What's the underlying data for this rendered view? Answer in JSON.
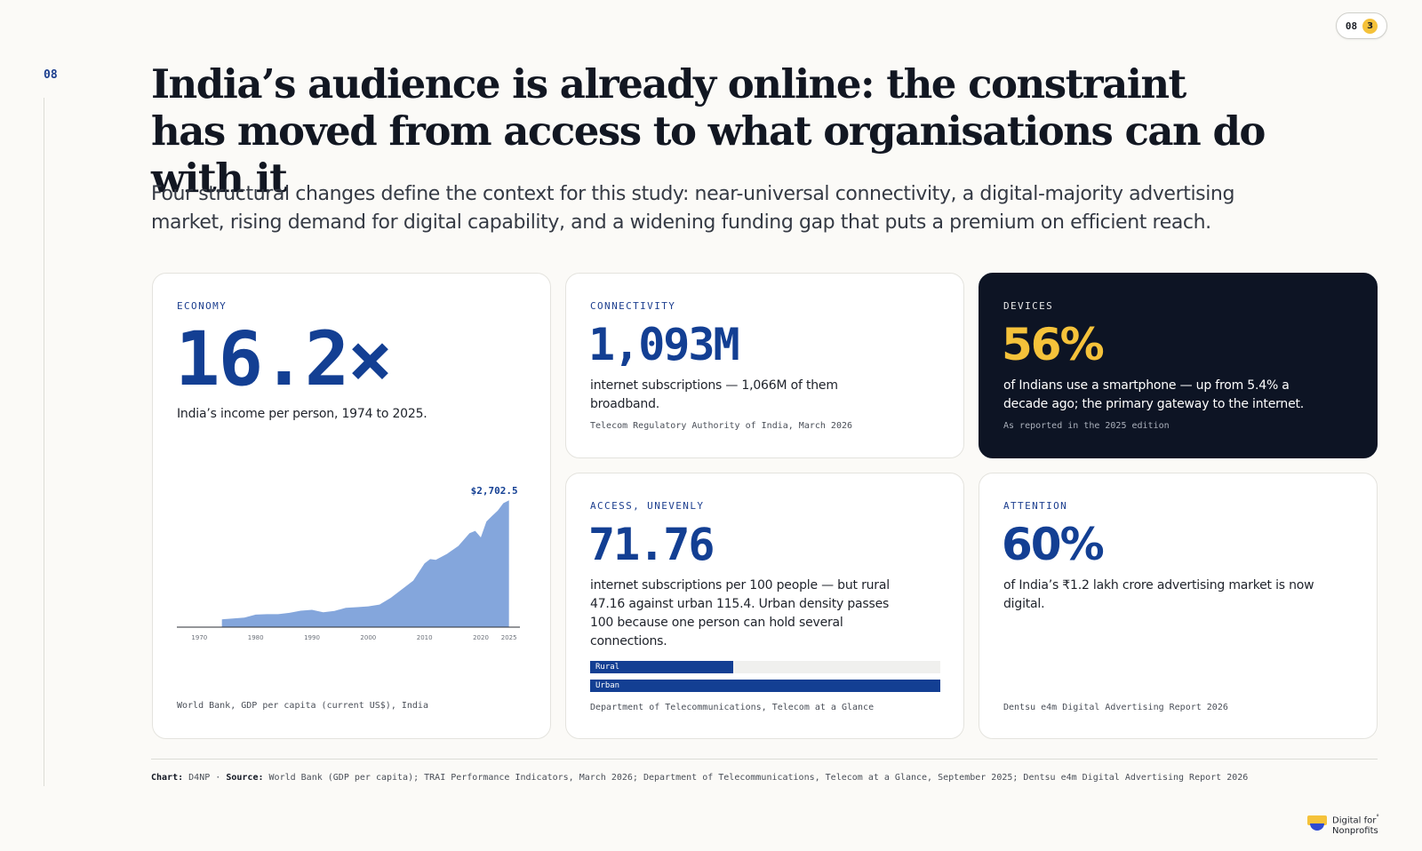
{
  "page": {
    "number": "08"
  },
  "badge": {
    "page": "08",
    "count": "3"
  },
  "title": "India’s audience is already online: the constraint has moved from access to what organisations can do with it",
  "subtitle": "Four structural changes define the context for this study: near-universal connectivity, a digital-majority advertising market, rising demand for digital capability, and a widening funding gap that puts a premium on efficient reach.",
  "cards": {
    "economy": {
      "label": "ECONOMY",
      "value": "16.2×",
      "description": "India’s income per person, 1974 to 2025.",
      "source": "World Bank, GDP per capita (current US$), India"
    },
    "connectivity": {
      "label": "CONNECTIVITY",
      "value": "1,093M",
      "description": "internet subscriptions — 1,066M of them broadband.",
      "source": "Telecom Regulatory Authority of India, March 2026"
    },
    "devices": {
      "label": "DEVICES",
      "value": "56%",
      "description": "of Indians use a smartphone — up from 5.4% a decade ago; the primary gateway to the internet.",
      "source": "As reported in the 2025 edition"
    },
    "access": {
      "label": "ACCESS, UNEVENLY",
      "value": "71.76",
      "description": "internet subscriptions per 100 people — but rural 47.16 against urban 115.4. Urban density passes 100 because one person can hold several connections.",
      "source": "Department of Telecommunications, Telecom at a Glance",
      "bars": [
        {
          "label": "Rural",
          "value": 47.16
        },
        {
          "label": "Urban",
          "value": 115.4
        }
      ]
    },
    "attention": {
      "label": "ATTENTION",
      "value": "60%",
      "description": "of India’s ₹1.2 lakh crore advertising market is now digital.",
      "source": "Dentsu e4m Digital Advertising Report 2026"
    }
  },
  "chart_data": {
    "type": "area",
    "title": "",
    "xlabel": "",
    "ylabel": "",
    "x": [
      1974,
      1976,
      1978,
      1980,
      1982,
      1984,
      1986,
      1988,
      1990,
      1992,
      1994,
      1996,
      1998,
      2000,
      2002,
      2004,
      2006,
      2008,
      2010,
      2011,
      2012,
      2014,
      2016,
      2018,
      2019,
      2020,
      2021,
      2022,
      2023,
      2024,
      2025
    ],
    "values": [
      166,
      185,
      205,
      266,
      276,
      277,
      305,
      350,
      368,
      318,
      346,
      411,
      426,
      442,
      480,
      624,
      806,
      991,
      1358,
      1450,
      1434,
      1560,
      1730,
      2000,
      2050,
      1910,
      2250,
      2370,
      2480,
      2640,
      2702.5
    ],
    "xlim": [
      1974,
      2025
    ],
    "ylim": [
      0,
      2800
    ],
    "x_ticks": [
      "1970",
      "1980",
      "1990",
      "2000",
      "2010",
      "2020",
      "2025"
    ],
    "end_label": "$2,702.5",
    "color": "#84a6dc"
  },
  "footer": {
    "chart_label": "Chart:",
    "chart_value": "D4NP",
    "separator": "·",
    "source_label": "Source:",
    "source_value": "World Bank (GDP per capita); TRAI Performance Indicators, March 2026; Department of Telecommunications, Telecom at a Glance, September 2025; Dentsu e4m Digital Advertising Report 2026"
  },
  "logo": {
    "line1": "Digital for",
    "line2": "Nonprofits",
    "mark": "°"
  }
}
